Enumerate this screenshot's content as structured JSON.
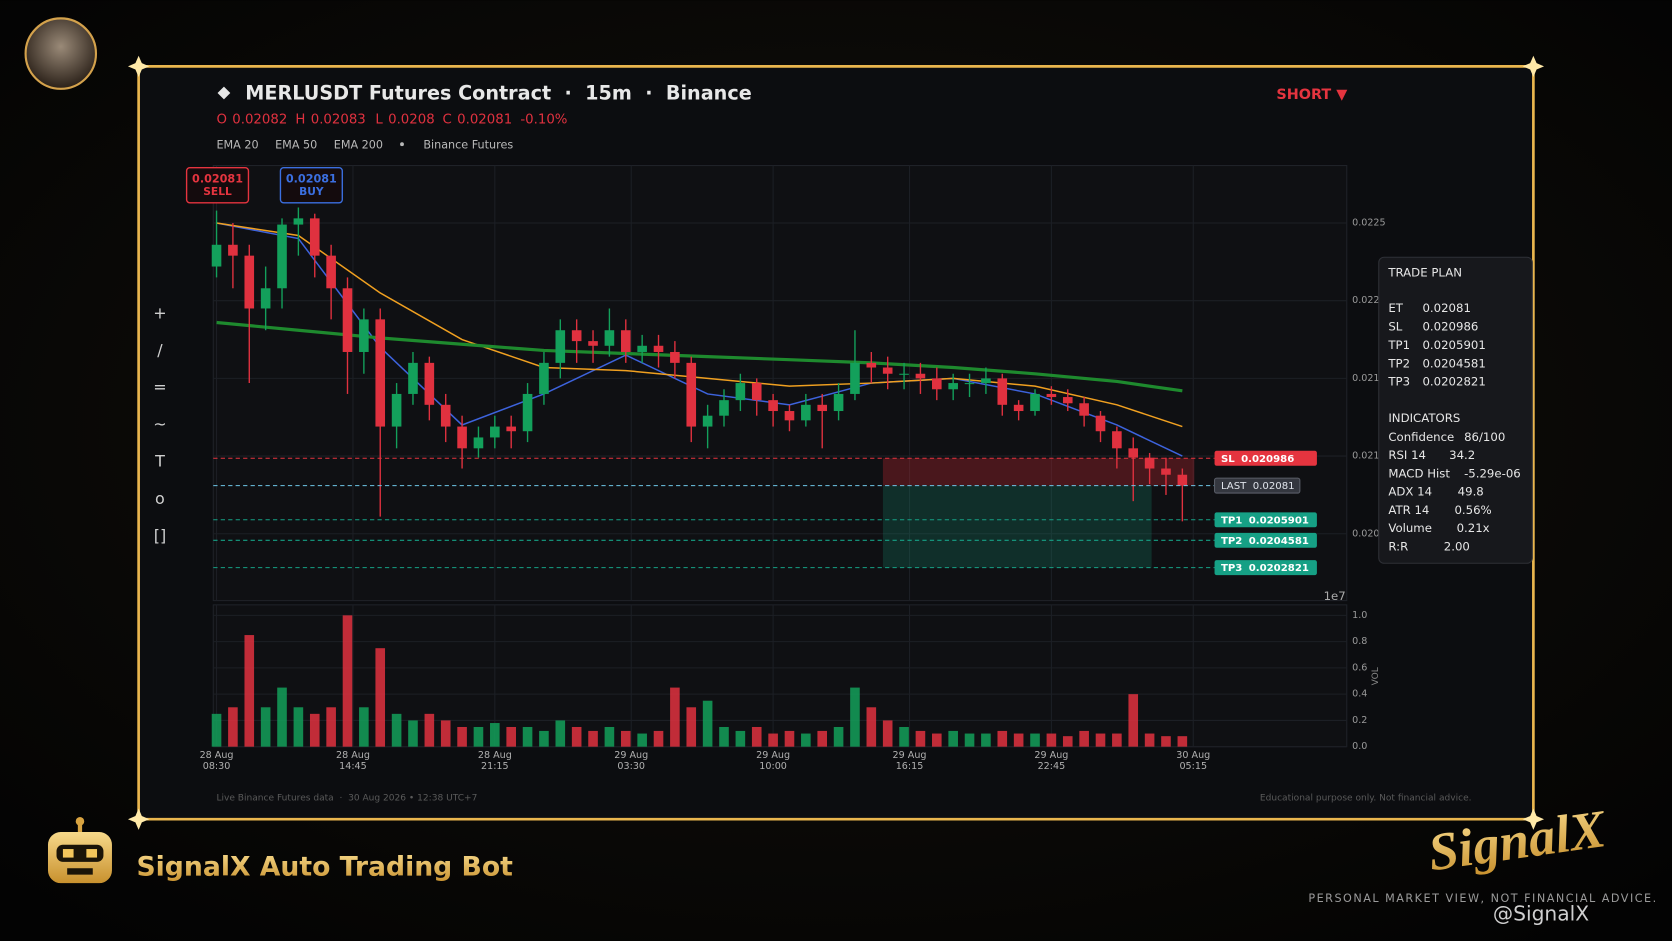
{
  "chart_data": {
    "type": "candlestick",
    "title": "MERLUSDT Futures Contract  ·  15m  ·  Binance",
    "signal": "SHORT ▼",
    "ohlc_header": [
      {
        "label": "O",
        "value": 0.02082
      },
      {
        "label": "H",
        "value": 0.02083
      },
      {
        "label": "L",
        "value": 0.0208
      },
      {
        "label": "C",
        "value": 0.02081
      }
    ],
    "change": {
      "value": -0.1,
      "label": "-0.10%"
    },
    "source": "Binance Futures",
    "quotes": [
      {
        "price": 0.02081,
        "side": "SELL",
        "color": "#e5343f"
      },
      {
        "price": 0.02081,
        "side": "BUY",
        "color": "#3b6fe0"
      }
    ],
    "up_color": "#13a05b",
    "down_color": "#e0313f",
    "x": [
      "28 Aug 08:30",
      "28 Aug 09:15",
      "28 Aug 10:00",
      "28 Aug 10:45",
      "28 Aug 11:30",
      "28 Aug 12:15",
      "28 Aug 13:00",
      "28 Aug 13:45",
      "28 Aug 14:30",
      "28 Aug 15:15",
      "28 Aug 16:00",
      "28 Aug 16:45",
      "28 Aug 17:30",
      "28 Aug 18:15",
      "28 Aug 19:00",
      "28 Aug 19:45",
      "28 Aug 20:30",
      "28 Aug 21:15",
      "28 Aug 22:00",
      "28 Aug 22:45",
      "28 Aug 23:30",
      "29 Aug 00:15",
      "29 Aug 01:00",
      "29 Aug 01:45",
      "29 Aug 02:30",
      "29 Aug 03:15",
      "29 Aug 04:00",
      "29 Aug 04:45",
      "29 Aug 05:30",
      "29 Aug 06:15",
      "29 Aug 07:00",
      "29 Aug 07:45",
      "29 Aug 08:30",
      "29 Aug 09:15",
      "29 Aug 10:00",
      "29 Aug 10:45",
      "29 Aug 11:30",
      "29 Aug 12:15",
      "29 Aug 13:00",
      "29 Aug 13:45",
      "29 Aug 14:30",
      "29 Aug 15:15",
      "29 Aug 16:00",
      "29 Aug 16:45",
      "29 Aug 17:30",
      "29 Aug 18:15",
      "29 Aug 19:00",
      "29 Aug 19:45",
      "29 Aug 20:30",
      "29 Aug 21:15",
      "29 Aug 22:00",
      "29 Aug 22:45",
      "29 Aug 23:30",
      "30 Aug 00:15",
      "30 Aug 01:00",
      "30 Aug 01:45",
      "30 Aug 02:30",
      "30 Aug 03:15",
      "30 Aug 04:00",
      "30 Aug 04:45"
    ],
    "ohlc": [
      [
        0.02222,
        0.02258,
        0.02215,
        0.02236
      ],
      [
        0.02236,
        0.0225,
        0.02208,
        0.02229
      ],
      [
        0.02229,
        0.02236,
        0.02147,
        0.02195
      ],
      [
        0.02195,
        0.02222,
        0.02181,
        0.02208
      ],
      [
        0.02208,
        0.02253,
        0.02195,
        0.02249
      ],
      [
        0.02249,
        0.0226,
        0.02229,
        0.02253
      ],
      [
        0.02253,
        0.02256,
        0.02215,
        0.02229
      ],
      [
        0.02229,
        0.02236,
        0.02188,
        0.02208
      ],
      [
        0.02208,
        0.02215,
        0.0214,
        0.02167
      ],
      [
        0.02167,
        0.02195,
        0.02153,
        0.02188
      ],
      [
        0.02188,
        0.02195,
        0.02061,
        0.02119
      ],
      [
        0.02119,
        0.02147,
        0.02105,
        0.0214
      ],
      [
        0.0214,
        0.02167,
        0.02133,
        0.0216
      ],
      [
        0.0216,
        0.02164,
        0.02123,
        0.02133
      ],
      [
        0.02133,
        0.0214,
        0.02109,
        0.02119
      ],
      [
        0.02119,
        0.02126,
        0.02092,
        0.02105
      ],
      [
        0.02105,
        0.02119,
        0.02099,
        0.02112
      ],
      [
        0.02112,
        0.02126,
        0.02105,
        0.02119
      ],
      [
        0.02119,
        0.02126,
        0.02105,
        0.02116
      ],
      [
        0.02116,
        0.02147,
        0.02109,
        0.0214
      ],
      [
        0.0214,
        0.02167,
        0.02133,
        0.0216
      ],
      [
        0.0216,
        0.02188,
        0.0215,
        0.02181
      ],
      [
        0.02181,
        0.02188,
        0.0216,
        0.02174
      ],
      [
        0.02174,
        0.02181,
        0.0216,
        0.02171
      ],
      [
        0.02171,
        0.02195,
        0.02164,
        0.02181
      ],
      [
        0.02181,
        0.02188,
        0.0216,
        0.02167
      ],
      [
        0.02167,
        0.02178,
        0.0216,
        0.02171
      ],
      [
        0.02171,
        0.02178,
        0.02157,
        0.02167
      ],
      [
        0.02167,
        0.02174,
        0.0215,
        0.0216
      ],
      [
        0.0216,
        0.02164,
        0.02109,
        0.02119
      ],
      [
        0.02119,
        0.02133,
        0.02105,
        0.02126
      ],
      [
        0.02126,
        0.02143,
        0.02119,
        0.02136
      ],
      [
        0.02136,
        0.02153,
        0.02129,
        0.02147
      ],
      [
        0.02147,
        0.0215,
        0.02126,
        0.02136
      ],
      [
        0.02136,
        0.0214,
        0.02119,
        0.02129
      ],
      [
        0.02129,
        0.02133,
        0.02116,
        0.02123
      ],
      [
        0.02123,
        0.0214,
        0.02119,
        0.02133
      ],
      [
        0.02133,
        0.0214,
        0.02105,
        0.02129
      ],
      [
        0.02129,
        0.02147,
        0.02123,
        0.0214
      ],
      [
        0.0214,
        0.02181,
        0.02136,
        0.0216
      ],
      [
        0.0216,
        0.02167,
        0.02147,
        0.02157
      ],
      [
        0.02157,
        0.02164,
        0.02143,
        0.02153
      ],
      [
        0.02153,
        0.0216,
        0.02143,
        0.02153
      ],
      [
        0.02153,
        0.0216,
        0.0214,
        0.0215
      ],
      [
        0.0215,
        0.02157,
        0.02136,
        0.02143
      ],
      [
        0.02143,
        0.02153,
        0.02136,
        0.02147
      ],
      [
        0.02147,
        0.02153,
        0.02138,
        0.02147
      ],
      [
        0.02147,
        0.02157,
        0.0214,
        0.0215
      ],
      [
        0.0215,
        0.02153,
        0.02126,
        0.02133
      ],
      [
        0.02133,
        0.02136,
        0.02123,
        0.02129
      ],
      [
        0.02129,
        0.02143,
        0.02126,
        0.0214
      ],
      [
        0.0214,
        0.02145,
        0.02133,
        0.02138
      ],
      [
        0.02138,
        0.02143,
        0.02129,
        0.02134
      ],
      [
        0.02134,
        0.02138,
        0.02119,
        0.02126
      ],
      [
        0.02126,
        0.02129,
        0.02109,
        0.02116
      ],
      [
        0.02116,
        0.02119,
        0.02092,
        0.02105
      ],
      [
        0.02105,
        0.02112,
        0.02071,
        0.02099
      ],
      [
        0.02099,
        0.02102,
        0.02082,
        0.02092
      ],
      [
        0.02092,
        0.02099,
        0.02075,
        0.02088
      ],
      [
        0.02088,
        0.02092,
        0.02058,
        0.02081
      ]
    ],
    "series": [
      {
        "name": "EMA 20",
        "color": "#3d63dd",
        "x": [
          "28 Aug 08:30",
          "28 Aug 12:15",
          "28 Aug 16:00",
          "28 Aug 19:45",
          "28 Aug 23:30",
          "29 Aug 03:15",
          "29 Aug 07:00",
          "29 Aug 10:45",
          "29 Aug 14:30",
          "29 Aug 18:15",
          "29 Aug 22:00",
          "30 Aug 01:45",
          "30 Aug 04:45"
        ],
        "values": [
          0.0225,
          0.0224,
          0.0217,
          0.0212,
          0.0214,
          0.02165,
          0.0214,
          0.02133,
          0.02147,
          0.0215,
          0.0214,
          0.0212,
          0.021
        ]
      },
      {
        "name": "EMA 50",
        "color": "#f0a020",
        "x": [
          "28 Aug 08:30",
          "28 Aug 12:15",
          "28 Aug 16:00",
          "28 Aug 19:45",
          "28 Aug 23:30",
          "29 Aug 03:15",
          "29 Aug 07:00",
          "29 Aug 10:45",
          "29 Aug 14:30",
          "29 Aug 18:15",
          "29 Aug 22:00",
          "30 Aug 01:45",
          "30 Aug 04:45"
        ],
        "values": [
          0.0225,
          0.02242,
          0.02205,
          0.02175,
          0.02157,
          0.02155,
          0.0215,
          0.02145,
          0.02147,
          0.0215,
          0.02145,
          0.02133,
          0.02119
        ]
      },
      {
        "name": "EMA 200",
        "color": "#1e8a2e",
        "x": [
          "28 Aug 08:30",
          "28 Aug 12:15",
          "28 Aug 16:00",
          "28 Aug 19:45",
          "28 Aug 23:30",
          "29 Aug 03:15",
          "29 Aug 07:00",
          "29 Aug 10:45",
          "29 Aug 14:30",
          "29 Aug 18:15",
          "29 Aug 22:00",
          "30 Aug 01:45",
          "30 Aug 04:45"
        ],
        "values": [
          0.02186,
          0.02181,
          0.02176,
          0.02172,
          0.02168,
          0.02166,
          0.02164,
          0.02162,
          0.0216,
          0.02157,
          0.02153,
          0.02148,
          0.02142
        ]
      }
    ],
    "levels": [
      {
        "name": "SL",
        "value": 0.020986,
        "color": "#e5343f"
      },
      {
        "name": "LAST",
        "value": 0.02081,
        "color": "#6ec6e8"
      },
      {
        "name": "TP1",
        "value": 0.0205901,
        "color": "#16a085"
      },
      {
        "name": "TP2",
        "value": 0.0204581,
        "color": "#16a085"
      },
      {
        "name": "TP3",
        "value": 0.0202821,
        "color": "#16a085"
      }
    ],
    "xlim": [
      "28 Aug 08:21",
      "30 Aug 12:17"
    ],
    "xticks": [
      "28 Aug 08:30",
      "28 Aug 14:45",
      "28 Aug 21:15",
      "29 Aug 03:30",
      "29 Aug 10:00",
      "29 Aug 16:15",
      "29 Aug 22:45",
      "30 Aug 05:15"
    ],
    "ylim": [
      0.02007,
      0.02287
    ],
    "yticks": [
      {
        "value": 0.0205,
        "label": "0.020"
      },
      0.021,
      {
        "value": 0.0215,
        "label": "0.021"
      },
      0.022,
      0.0225
    ],
    "offset_label": "1e7",
    "grid": true,
    "volume": {
      "label": "VOL",
      "ylim": [
        0,
        1.08
      ],
      "yticks": [
        {
          "value": 0,
          "label": "0.0"
        },
        0.2,
        0.4,
        0.6,
        0.8,
        {
          "value": 1,
          "label": "1.0"
        }
      ],
      "values": [
        0.25,
        0.3,
        0.85,
        0.3,
        0.45,
        0.3,
        0.25,
        0.3,
        1.0,
        0.3,
        0.75,
        0.25,
        0.2,
        0.25,
        0.2,
        0.15,
        0.15,
        0.18,
        0.15,
        0.15,
        0.12,
        0.2,
        0.15,
        0.12,
        0.15,
        0.12,
        0.1,
        0.12,
        0.45,
        0.3,
        0.35,
        0.15,
        0.12,
        0.15,
        0.1,
        0.12,
        0.1,
        0.12,
        0.15,
        0.45,
        0.3,
        0.2,
        0.15,
        0.12,
        0.1,
        0.12,
        0.1,
        0.1,
        0.12,
        0.1,
        0.1,
        0.1,
        0.08,
        0.12,
        0.1,
        0.1,
        0.4,
        0.1,
        0.08,
        0.08
      ]
    }
  },
  "toolbar": [
    "+",
    "/",
    "=",
    "~",
    "T",
    "o",
    "[]"
  ],
  "trade_plan": {
    "title": "TRADE PLAN",
    "rows": [
      [
        "ET",
        0.02081
      ],
      [
        "SL",
        0.020986
      ],
      [
        "TP1",
        0.0205901
      ],
      [
        "TP2",
        0.0204581
      ],
      [
        "TP3",
        0.0202821
      ]
    ]
  },
  "indicators": {
    "title": "INDICATORS",
    "rows": [
      [
        "Confidence",
        "86/100"
      ],
      [
        "RSI 14",
        34.2
      ],
      [
        "MACD Hist",
        "-5.29e-06"
      ],
      [
        "ADX 14",
        49.8
      ],
      [
        "ATR 14",
        "0.56%"
      ],
      [
        "Volume",
        "0.21x"
      ],
      [
        "R:R",
        "2.00"
      ]
    ]
  },
  "footer": {
    "left": "Live Binance Futures data  ·  30 Aug 2026 • 12:38 UTC+7",
    "right": "Educational purpose only. Not financial advice."
  },
  "branding": {
    "name": "SignalX Auto Trading Bot",
    "logo": "SignalX",
    "tagline": "PERSONAL MARKET VIEW, NOT FINANCIAL ADVICE.",
    "watermark": "@SignalX"
  }
}
